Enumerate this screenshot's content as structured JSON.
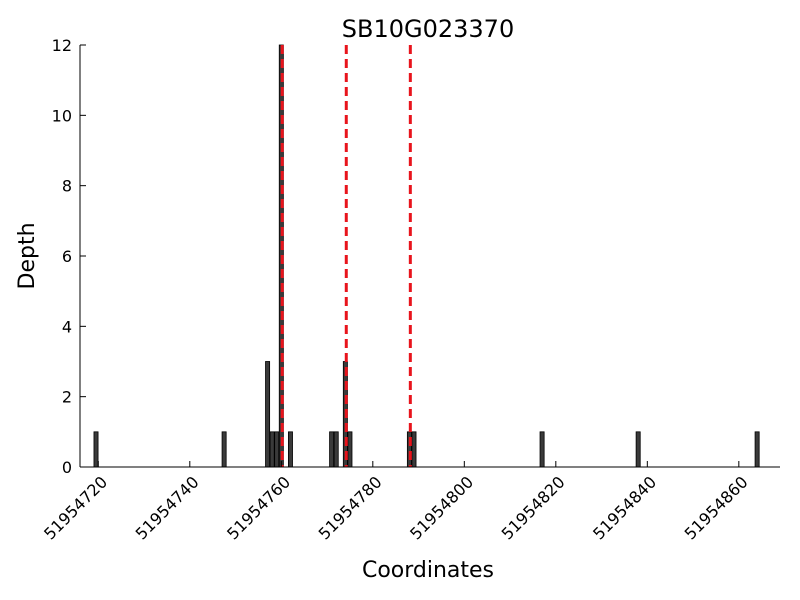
{
  "chart_data": {
    "type": "bar",
    "title": "SB10G023370",
    "xlabel": "Coordinates",
    "ylabel": "Depth",
    "xlim": [
      51954716,
      51954869
    ],
    "ylim": [
      0,
      12
    ],
    "xticks": [
      51954720,
      51954740,
      51954760,
      51954780,
      51954800,
      51954820,
      51954840,
      51954860
    ],
    "yticks": [
      0,
      2,
      4,
      6,
      8,
      10,
      12
    ],
    "grid": false,
    "bar_color": "#3a3a3a",
    "bars": [
      {
        "x": 51954719.5,
        "y": 1
      },
      {
        "x": 51954747.5,
        "y": 1
      },
      {
        "x": 51954757.0,
        "y": 3
      },
      {
        "x": 51954758.0,
        "y": 1
      },
      {
        "x": 51954759.0,
        "y": 1
      },
      {
        "x": 51954760.0,
        "y": 12
      },
      {
        "x": 51954762.0,
        "y": 1
      },
      {
        "x": 51954771.0,
        "y": 1
      },
      {
        "x": 51954772.0,
        "y": 1
      },
      {
        "x": 51954774.0,
        "y": 3
      },
      {
        "x": 51954775.0,
        "y": 1
      },
      {
        "x": 51954788.0,
        "y": 1
      },
      {
        "x": 51954789.0,
        "y": 1
      },
      {
        "x": 51954817.0,
        "y": 1
      },
      {
        "x": 51954838.0,
        "y": 1
      },
      {
        "x": 51954864.0,
        "y": 1
      }
    ],
    "vlines": {
      "color": "#e8141c",
      "style": "dashed",
      "x": [
        51954760.2,
        51954774.2,
        51954788.2
      ]
    }
  }
}
